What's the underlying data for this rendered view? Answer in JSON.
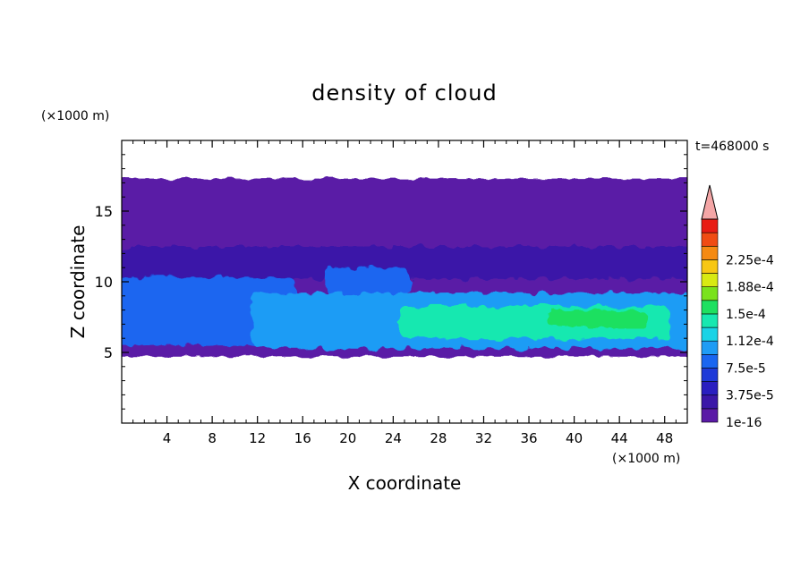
{
  "chart_data": {
    "type": "heatmap",
    "title": "density of cloud",
    "xlabel": "X coordinate",
    "ylabel": "Z coordinate",
    "x_unit": "(×1000 m)",
    "y_unit": "(×1000 m)",
    "time_label": "t=468000 s",
    "xlim": [
      0,
      50
    ],
    "ylim": [
      0,
      20
    ],
    "x_ticks": [
      4,
      8,
      12,
      16,
      20,
      24,
      28,
      32,
      36,
      40,
      44,
      48
    ],
    "y_ticks": [
      5,
      10,
      15
    ],
    "colorbar": {
      "labels": [
        "1e-16",
        "3.75e-5",
        "7.5e-5",
        "1.12e-4",
        "1.5e-4",
        "1.88e-4",
        "2.25e-4"
      ],
      "levels": [
        1e-16,
        1.875e-05,
        3.75e-05,
        5.625e-05,
        7.5e-05,
        9.375e-05,
        0.0001125,
        0.00013125,
        0.00015,
        0.00016875,
        0.0001875,
        0.00020625,
        0.000225,
        0.00024375
      ],
      "colors": [
        "#5a1aa6",
        "#3b17a8",
        "#2a1fc0",
        "#1e3ad8",
        "#1a66f0",
        "#1f9cf5",
        "#19d3e6",
        "#17e8b0",
        "#1ee060",
        "#7ae21c",
        "#d8ea13",
        "#f7c713",
        "#f58a12",
        "#f04c13",
        "#e81c14"
      ],
      "extend_color": "#f4a6a6"
    },
    "regions": [
      {
        "name": "cloud envelope",
        "x": [
          0,
          50
        ],
        "z": [
          4.7,
          17.3
        ],
        "level": 0
      },
      {
        "name": "upper layer",
        "x": [
          0,
          50
        ],
        "z": [
          10.2,
          12.5
        ],
        "level": 1
      },
      {
        "name": "left band",
        "x": [
          0,
          15
        ],
        "z": [
          5.5,
          10.3
        ],
        "level": 4
      },
      {
        "name": "mid patch",
        "x": [
          18.5,
          25
        ],
        "z": [
          9.0,
          11.0
        ],
        "level": 4
      },
      {
        "name": "right band",
        "x": [
          12,
          50
        ],
        "z": [
          5.3,
          9.2
        ],
        "level": 5
      },
      {
        "name": "core",
        "x": [
          25,
          48
        ],
        "z": [
          6.0,
          8.3
        ],
        "level": 7
      },
      {
        "name": "max core",
        "x": [
          38,
          46
        ],
        "z": [
          6.8,
          8.0
        ],
        "level": 8
      }
    ]
  }
}
